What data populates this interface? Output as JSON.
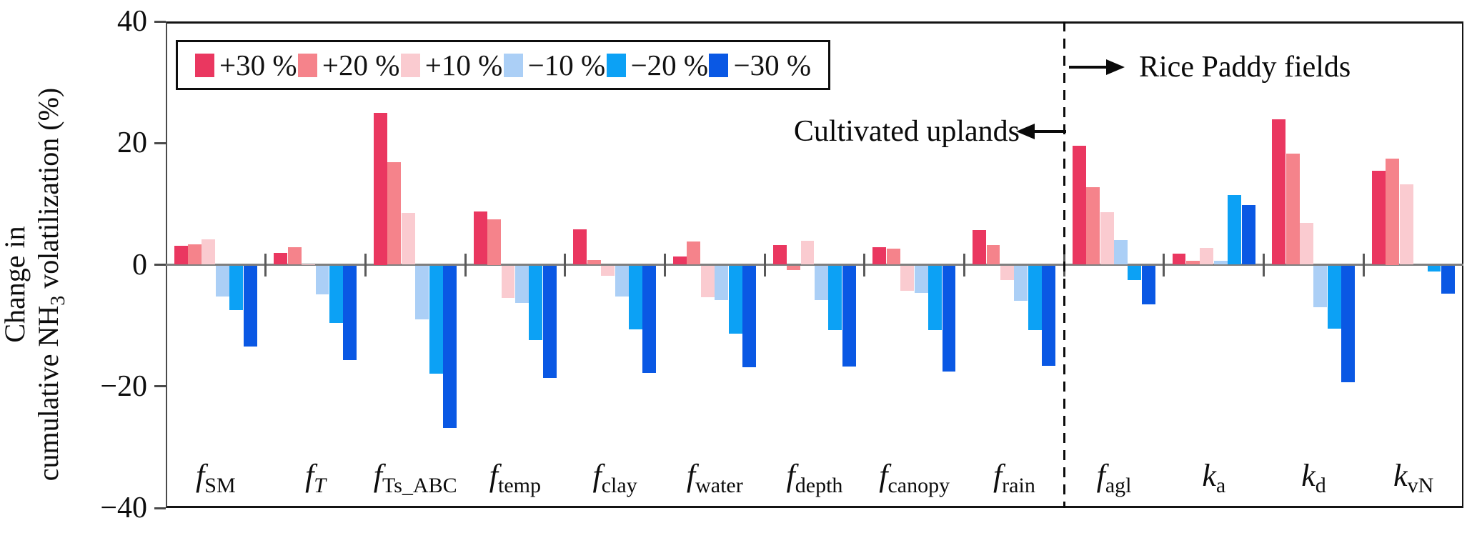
{
  "figure": {
    "ylabel": {
      "line1": "Change in",
      "line2_pre": "cumulative NH",
      "line2_sub": "3",
      "line2_post": " volatilization (%)"
    },
    "annotations": {
      "left_region": "Cultivated uplands",
      "right_region": "Rice Paddy fields"
    }
  },
  "chart_data": {
    "type": "bar",
    "title": "",
    "xlabel": "",
    "ylabel": "Change in cumulative NH3 volatilization (%)",
    "ylim": [
      -40,
      40
    ],
    "ytick_values": [
      40,
      20,
      0,
      -20,
      -40
    ],
    "ytick_labels": [
      "40",
      "20",
      "0",
      "−20",
      "−40"
    ],
    "grid": "off",
    "legend_position": "top-left",
    "zero_line_color": "#7f7f7f",
    "categories": [
      {
        "main": "f",
        "sub": "SM",
        "sub_italic": false
      },
      {
        "main": "f",
        "sub": "T",
        "sub_italic": true
      },
      {
        "main": "f",
        "sub": "Ts_ABC",
        "sub_italic": false
      },
      {
        "main": "f",
        "sub": "temp",
        "sub_italic": false
      },
      {
        "main": "f",
        "sub": "clay",
        "sub_italic": false
      },
      {
        "main": "f",
        "sub": "water",
        "sub_italic": false
      },
      {
        "main": "f",
        "sub": "depth",
        "sub_italic": false
      },
      {
        "main": "f",
        "sub": "canopy",
        "sub_italic": false
      },
      {
        "main": "f",
        "sub": "rain",
        "sub_italic": false
      },
      {
        "main": "f",
        "sub": "agl",
        "sub_italic": false
      },
      {
        "main": "k",
        "sub": "a",
        "sub_italic": false
      },
      {
        "main": "k",
        "sub": "d",
        "sub_italic": false
      },
      {
        "main": "k",
        "sub": "vN",
        "sub_italic": false
      }
    ],
    "series": [
      {
        "name": "+30 %",
        "color": "#EA3760",
        "values": [
          3.1,
          1.9,
          25.0,
          8.7,
          5.8,
          1.4,
          3.2,
          2.9,
          5.7,
          19.6,
          1.8,
          23.9,
          15.5
        ]
      },
      {
        "name": "+20 %",
        "color": "#F5838B",
        "values": [
          3.3,
          2.9,
          16.8,
          7.5,
          0.8,
          3.8,
          -0.7,
          2.7,
          3.2,
          12.7,
          0.7,
          18.3,
          17.5
        ]
      },
      {
        "name": "+10 %",
        "color": "#FACBD0",
        "values": [
          4.2,
          0.1,
          8.5,
          -5.3,
          -1.6,
          -5.2,
          3.9,
          -4.1,
          -2.3,
          8.6,
          2.8,
          6.9,
          13.2
        ]
      },
      {
        "name": "−10 %",
        "color": "#ABCFF6",
        "values": [
          -5.0,
          -4.7,
          -8.8,
          -6.1,
          -5.0,
          -5.6,
          -5.6,
          -4.5,
          -5.7,
          4.0,
          0.6,
          -6.8,
          0.0
        ]
      },
      {
        "name": "−20 %",
        "color": "#0CA1F5",
        "values": [
          -7.3,
          -9.4,
          -17.7,
          -12.2,
          -10.5,
          -11.2,
          -10.6,
          -10.6,
          -10.6,
          -2.4,
          11.5,
          -10.3,
          -0.9
        ]
      },
      {
        "name": "−30 %",
        "color": "#0A58E4",
        "values": [
          -13.3,
          -15.5,
          -26.7,
          -18.5,
          -17.6,
          -16.7,
          -16.6,
          -17.4,
          -16.5,
          -6.4,
          9.8,
          -19.2,
          -4.6
        ]
      }
    ],
    "separator": {
      "after_category_index": 8,
      "left_region_label": "Cultivated uplands",
      "right_region_label": "Rice Paddy fields"
    }
  }
}
